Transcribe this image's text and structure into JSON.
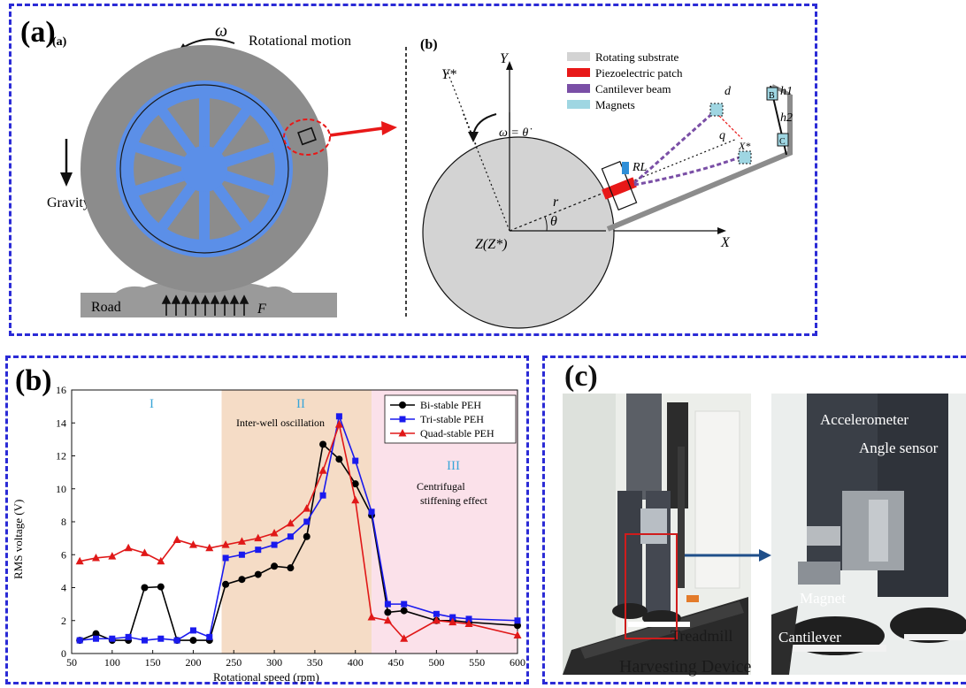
{
  "panel_a": {
    "label": "(a)",
    "sub_label_left": "(a)",
    "sub_label_right": "(b)",
    "omega": "ω",
    "rotational_motion": "Rotational motion",
    "gravity": "Gravity",
    "road": "Road",
    "force": "F",
    "axis_y": "Y",
    "axis_x": "X",
    "axis_y_star": "Y*",
    "axis_x_star": "X*",
    "origin": "Z(Z*)",
    "omega_eq": "ω = θ̇",
    "theta": "θ",
    "radius": "r",
    "resistor": "RL",
    "dist_d": "d",
    "dist_q": "q",
    "h1": "h1",
    "h2": "h2",
    "magnet_b": "B",
    "magnet_c": "C",
    "legend": [
      {
        "label": "Rotating substrate",
        "color": "#d3d3d3"
      },
      {
        "label": "Piezoelectric patch",
        "color": "#e81818"
      },
      {
        "label": "Cantilever beam",
        "color": "#7a4fa6"
      },
      {
        "label": "Magnets",
        "color": "#9fd6e2"
      }
    ],
    "colors": {
      "tire": "#8c8c8c",
      "rim": "#5b8fe8",
      "hub": "#5b8fe8",
      "road": "#9a9a9a",
      "arrow": "#e81818"
    }
  },
  "panel_b": {
    "label": "(b)",
    "chart_data": {
      "type": "line",
      "xlabel": "Rotational speed (rpm)",
      "ylabel": "RMS voltage (V)",
      "xlim": [
        50,
        600
      ],
      "ylim": [
        0,
        16
      ],
      "xticks": [
        "50",
        "100",
        "150",
        "200",
        "250",
        "300",
        "350",
        "400",
        "450",
        "500",
        "550",
        "600"
      ],
      "yticks": [
        "0",
        "2",
        "4",
        "6",
        "8",
        "10",
        "12",
        "14",
        "16"
      ],
      "regions": [
        {
          "name": "I",
          "from": 50,
          "to": 235,
          "color": "#ffffff"
        },
        {
          "name": "II",
          "from": 235,
          "to": 420,
          "color": "#f5dcc6"
        },
        {
          "name": "III",
          "from": 420,
          "to": 600,
          "color": "#fbe1ea"
        }
      ],
      "region_labels": {
        "I": "I",
        "II": "II",
        "III": "III"
      },
      "annotations": {
        "inter_well": "Inter-well oscillation",
        "centrifugal": "Centrifugal stiffening effect"
      },
      "legend_position": "top-right",
      "series": [
        {
          "name": "Bi-stable PEH",
          "color": "#000000",
          "marker": "circle",
          "x": [
            60,
            80,
            100,
            120,
            140,
            160,
            180,
            200,
            220,
            240,
            260,
            280,
            300,
            320,
            340,
            360,
            380,
            400,
            420,
            440,
            460,
            500,
            520,
            540,
            600
          ],
          "y": [
            0.8,
            1.2,
            0.8,
            0.8,
            4.0,
            4.05,
            0.8,
            0.8,
            0.8,
            4.2,
            4.5,
            4.8,
            5.3,
            5.2,
            7.1,
            12.7,
            11.8,
            10.3,
            8.4,
            2.5,
            2.6,
            2.0,
            2.0,
            1.9,
            1.7
          ]
        },
        {
          "name": "Tri-stable PEH",
          "color": "#1a1aee",
          "marker": "square",
          "x": [
            60,
            80,
            100,
            120,
            140,
            160,
            180,
            200,
            220,
            240,
            260,
            280,
            300,
            320,
            340,
            360,
            380,
            400,
            420,
            440,
            460,
            500,
            520,
            540,
            600
          ],
          "y": [
            0.8,
            0.9,
            0.9,
            1.0,
            0.8,
            0.9,
            0.8,
            1.4,
            1.0,
            5.8,
            6.0,
            6.3,
            6.6,
            7.1,
            8.0,
            9.6,
            14.4,
            11.7,
            8.6,
            3.0,
            3.0,
            2.4,
            2.2,
            2.1,
            2.0
          ]
        },
        {
          "name": "Quad-stable PEH",
          "color": "#e01818",
          "marker": "triangle",
          "x": [
            60,
            80,
            100,
            120,
            140,
            160,
            180,
            200,
            220,
            240,
            260,
            280,
            300,
            320,
            340,
            360,
            380,
            400,
            420,
            440,
            460,
            500,
            520,
            540,
            600
          ],
          "y": [
            5.6,
            5.8,
            5.9,
            6.4,
            6.1,
            5.6,
            6.9,
            6.6,
            6.4,
            6.6,
            6.8,
            7.0,
            7.3,
            7.9,
            8.8,
            11.1,
            13.9,
            9.3,
            2.2,
            2.0,
            0.9,
            2.0,
            1.9,
            1.8,
            1.1
          ]
        }
      ]
    }
  },
  "panel_c": {
    "label": "(c)",
    "treadmill": "Treadmill",
    "harvesting_device": "Harvesting Device",
    "accelerometer": "Accelerometer",
    "angle_sensor": "Angle sensor",
    "magnet": "Magnet",
    "cantilever": "Cantilever",
    "colors": {
      "highlight": "#d01c1c",
      "arrow": "#1f4f8a"
    }
  }
}
